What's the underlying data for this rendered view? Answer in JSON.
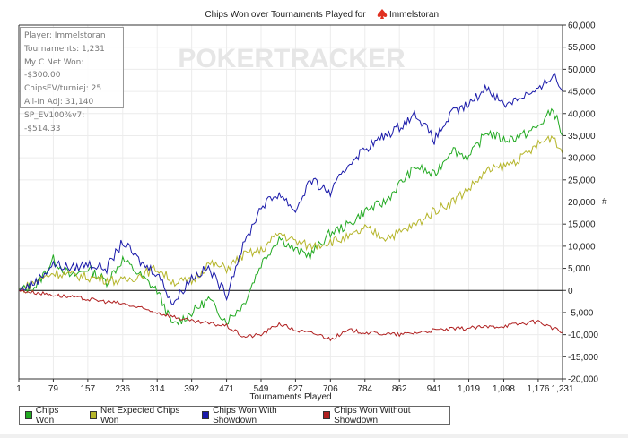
{
  "chart_data": {
    "type": "line",
    "title": "Chips Won over Tournaments Played for",
    "player": "Immelstoran",
    "xlabel": "Tournaments Played",
    "ylabel": "#",
    "xlim": [
      1,
      1231
    ],
    "ylim": [
      -20000,
      60000
    ],
    "x_ticks": [
      "1",
      "79",
      "157",
      "236",
      "314",
      "392",
      "471",
      "549",
      "627",
      "706",
      "784",
      "862",
      "941",
      "1,019",
      "1,098",
      "1,176",
      "1,231"
    ],
    "x_tick_values": [
      1,
      79,
      157,
      236,
      314,
      392,
      471,
      549,
      627,
      706,
      784,
      862,
      941,
      1019,
      1098,
      1176,
      1231
    ],
    "y_ticks": [
      "-20,000",
      "-15,000",
      "-10,000",
      "-5,000",
      "0",
      "5,000",
      "10,000",
      "15,000",
      "20,000",
      "25,000",
      "30,000",
      "35,000",
      "40,000",
      "45,000",
      "50,000",
      "55,000",
      "60,000"
    ],
    "grid": true,
    "legend_position": "bottom",
    "watermark": "POKERTRACKER",
    "series": [
      {
        "name": "Chips Won",
        "color": "#22aa22",
        "x": [
          1,
          40,
          79,
          120,
          157,
          200,
          236,
          280,
          314,
          350,
          392,
          430,
          471,
          510,
          549,
          590,
          627,
          660,
          706,
          750,
          784,
          830,
          862,
          900,
          941,
          980,
          1019,
          1060,
          1098,
          1140,
          1176,
          1210,
          1231
        ],
        "y": [
          0,
          1000,
          7000,
          3000,
          5000,
          2000,
          7000,
          3000,
          0,
          -8000,
          -5000,
          -2000,
          -7000,
          -3000,
          6000,
          12000,
          9000,
          8000,
          13000,
          15000,
          18000,
          20000,
          24000,
          28000,
          26000,
          32000,
          30000,
          36000,
          34000,
          35000,
          37000,
          41000,
          35000
        ]
      },
      {
        "name": "Net Expected Chips Won",
        "color": "#b5b52a",
        "x": [
          1,
          79,
          157,
          236,
          314,
          350,
          392,
          430,
          471,
          510,
          549,
          590,
          627,
          660,
          706,
          750,
          784,
          830,
          862,
          900,
          941,
          980,
          1019,
          1060,
          1098,
          1140,
          1176,
          1210,
          1231
        ],
        "y": [
          0,
          4000,
          3000,
          2000,
          5000,
          2000,
          2000,
          6000,
          5000,
          8000,
          9000,
          13000,
          11000,
          10000,
          11000,
          12000,
          14000,
          12000,
          13000,
          15000,
          18000,
          20000,
          23000,
          27000,
          28000,
          30000,
          33000,
          35000,
          31000
        ]
      },
      {
        "name": "Chips Won With Showdown",
        "color": "#1a1aaa",
        "x": [
          1,
          40,
          79,
          120,
          157,
          200,
          236,
          280,
          314,
          350,
          392,
          430,
          471,
          500,
          549,
          590,
          627,
          660,
          706,
          750,
          784,
          830,
          862,
          900,
          941,
          980,
          1019,
          1060,
          1098,
          1140,
          1176,
          1210,
          1231
        ],
        "y": [
          0,
          2000,
          6000,
          5000,
          6000,
          5000,
          11000,
          6000,
          4000,
          -3000,
          3000,
          5000,
          -1000,
          8000,
          19000,
          22000,
          18000,
          25000,
          22000,
          29000,
          32000,
          35000,
          37000,
          40000,
          34000,
          40000,
          42000,
          46000,
          42000,
          44000,
          45000,
          49000,
          45000
        ]
      },
      {
        "name": "Chips Won Without Showdown",
        "color": "#b02020",
        "x": [
          1,
          79,
          157,
          236,
          314,
          392,
          471,
          510,
          549,
          590,
          627,
          680,
          706,
          750,
          784,
          862,
          941,
          1019,
          1098,
          1176,
          1231
        ],
        "y": [
          0,
          -1000,
          -2000,
          -3000,
          -5000,
          -7000,
          -8000,
          -10500,
          -10000,
          -7500,
          -9000,
          -10000,
          -11000,
          -9000,
          -9500,
          -10000,
          -9000,
          -8500,
          -8000,
          -7000,
          -9500
        ]
      }
    ]
  },
  "info_box": [
    "Player: Immelstoran",
    "Tournaments: 1,231",
    "My C Net Won: -$300.00",
    "ChipsEV/turniej: 25",
    "All-In Adj: 31,140",
    "SP_EV100%v7: -$514.33"
  ]
}
